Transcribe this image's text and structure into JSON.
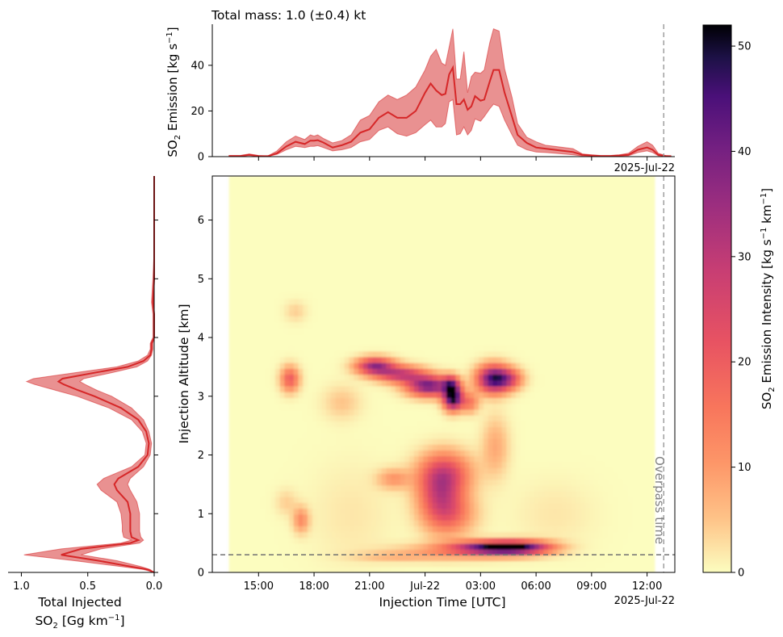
{
  "chart_data": [
    {
      "type": "area",
      "panel": "top",
      "title": "Total mass: 1.0 (±0.4) kt",
      "ylabel": "SO2 Emission [kg s-1]",
      "ylabel_parts": {
        "pre": "SO",
        "sub": "2",
        "mid": " Emission [kg s",
        "sup": "−1",
        "post": "]"
      },
      "ylim": [
        0,
        58
      ],
      "yticks": [
        0,
        20,
        40
      ],
      "xlim_hours": [
        -11.5,
        13.5
      ],
      "x_offset_label": "2025-Jul-22",
      "series": [
        {
          "color": "#d62728",
          "x_hours": [
            -10.6,
            -10,
            -9.5,
            -9,
            -8.5,
            -8,
            -7.5,
            -7,
            -6.5,
            -6.2,
            -6,
            -5.8,
            -5.5,
            -5,
            -4.5,
            -4,
            -3.5,
            -3,
            -2.5,
            -2,
            -1.5,
            -1,
            -0.5,
            0,
            0.3,
            0.6,
            0.9,
            1.1,
            1.3,
            1.5,
            1.7,
            1.9,
            2.1,
            2.3,
            2.5,
            2.7,
            3.0,
            3.2,
            3.5,
            3.7,
            4.0,
            4.3,
            4.7,
            5.0,
            5.5,
            6.0,
            6.5,
            7,
            8,
            8.5,
            9,
            9.5,
            10,
            10.5,
            11,
            11.5,
            12,
            12.3,
            12.6,
            13,
            13.3
          ],
          "y": [
            0.3,
            0.3,
            0.8,
            0.3,
            0.2,
            1.5,
            4.5,
            6.5,
            5.5,
            7.0,
            7.0,
            7.2,
            6.2,
            4.0,
            5.0,
            6.5,
            10.5,
            12.0,
            17.0,
            19.5,
            17.0,
            17.0,
            20.0,
            28.0,
            32.0,
            29.0,
            27.0,
            27.5,
            36.0,
            39.0,
            23.0,
            23.0,
            25.0,
            20.5,
            22.0,
            26.5,
            24.5,
            25.0,
            33.0,
            38.0,
            38.0,
            28.0,
            17.5,
            9.5,
            6.0,
            4.0,
            3.5,
            3.0,
            2.0,
            0.8,
            0.5,
            0.3,
            0.3,
            0.5,
            0.8,
            3.0,
            4.0,
            3.0,
            0.8,
            0.3,
            0.2
          ],
          "lower": [
            0.2,
            0.2,
            0.5,
            0.2,
            0.1,
            1.0,
            3.0,
            4.5,
            4.0,
            4.5,
            4.5,
            4.8,
            4.0,
            2.5,
            3.0,
            4.0,
            6.5,
            7.5,
            11.5,
            13.0,
            10.0,
            9.0,
            10.5,
            14.0,
            16.0,
            13.0,
            13.0,
            14.5,
            24.0,
            25.0,
            9.5,
            10.0,
            13.0,
            9.5,
            11.5,
            16.5,
            15.5,
            17.5,
            21.0,
            23.0,
            22.0,
            16.0,
            9.5,
            5.0,
            3.0,
            2.0,
            1.8,
            1.5,
            0.8,
            0.3,
            0.2,
            0.1,
            0.1,
            0.2,
            0.4,
            1.8,
            2.5,
            1.8,
            0.4,
            0.1,
            0.1
          ],
          "upper": [
            0.5,
            0.5,
            1.2,
            0.5,
            0.3,
            2.5,
            6.5,
            9.0,
            7.5,
            9.5,
            9.0,
            9.5,
            8.0,
            6.0,
            7.0,
            9.5,
            16.0,
            18.0,
            24.0,
            27.0,
            25.0,
            27.0,
            30.5,
            38.0,
            44.0,
            47.0,
            41.0,
            40.0,
            48.0,
            56.0,
            34.0,
            34.0,
            46.0,
            28.0,
            35.0,
            37.0,
            36.5,
            38.0,
            50.0,
            56.0,
            55.0,
            38.5,
            26.0,
            14.5,
            8.5,
            6.5,
            5.0,
            4.5,
            3.5,
            1.2,
            0.8,
            0.5,
            0.5,
            0.8,
            1.5,
            4.5,
            6.5,
            5.0,
            1.5,
            0.5,
            0.3
          ]
        }
      ]
    },
    {
      "type": "line",
      "panel": "left",
      "xlabel_parts": {
        "line1": "Total Injected",
        "pre": "SO",
        "sub": "2",
        "mid": " [Gg km",
        "sup": "−1",
        "post": "]"
      },
      "xlim": [
        1.1,
        0.0
      ],
      "xticks": [
        1.0,
        0.5,
        0.0
      ],
      "xtick_labels": [
        "1.0",
        "0.5",
        "0.0"
      ],
      "series": [
        {
          "color": "#d62728",
          "altitude_km": [
            0.0,
            0.05,
            0.1,
            0.2,
            0.3,
            0.4,
            0.5,
            0.55,
            0.6,
            0.7,
            0.8,
            1.0,
            1.2,
            1.4,
            1.5,
            1.6,
            1.8,
            2.0,
            2.2,
            2.4,
            2.6,
            2.8,
            3.0,
            3.1,
            3.2,
            3.25,
            3.3,
            3.4,
            3.5,
            3.6,
            3.7,
            3.8,
            3.9,
            4.0,
            4.2,
            4.4,
            4.6,
            5.0,
            5.5,
            6.0,
            6.5,
            6.75
          ],
          "value": [
            0.0,
            0.05,
            0.18,
            0.42,
            0.7,
            0.55,
            0.18,
            0.12,
            0.17,
            0.18,
            0.18,
            0.18,
            0.2,
            0.28,
            0.3,
            0.27,
            0.12,
            0.05,
            0.04,
            0.06,
            0.12,
            0.25,
            0.45,
            0.57,
            0.68,
            0.72,
            0.69,
            0.45,
            0.2,
            0.08,
            0.03,
            0.02,
            0.02,
            0.0,
            0.0,
            0.0,
            0.01,
            0.0,
            0.0,
            0.0,
            0.0,
            0.0
          ],
          "lower": [
            0.0,
            0.03,
            0.1,
            0.28,
            0.55,
            0.4,
            0.11,
            0.08,
            0.1,
            0.11,
            0.11,
            0.11,
            0.13,
            0.18,
            0.2,
            0.18,
            0.08,
            0.03,
            0.02,
            0.04,
            0.08,
            0.17,
            0.32,
            0.43,
            0.52,
            0.56,
            0.53,
            0.32,
            0.13,
            0.05,
            0.02,
            0.01,
            0.01,
            0.0,
            0.0,
            0.0,
            0.0,
            0.0,
            0.0,
            0.0,
            0.0,
            0.0
          ],
          "upper": [
            0.0,
            0.08,
            0.25,
            0.6,
            0.98,
            0.7,
            0.25,
            0.17,
            0.23,
            0.24,
            0.24,
            0.25,
            0.28,
            0.4,
            0.43,
            0.38,
            0.17,
            0.07,
            0.06,
            0.09,
            0.17,
            0.34,
            0.58,
            0.74,
            0.9,
            0.96,
            0.91,
            0.6,
            0.28,
            0.12,
            0.05,
            0.03,
            0.03,
            0.01,
            0.01,
            0.01,
            0.02,
            0.01,
            0.0,
            0.0,
            0.0,
            0.0
          ]
        }
      ]
    },
    {
      "type": "heatmap",
      "panel": "main",
      "xlabel": "Injection Time [UTC]",
      "ylabel": "Injection Altitude [km]",
      "xlim_hours": [
        -11.5,
        13.5
      ],
      "ylim": [
        0,
        6.75
      ],
      "xticks_hours": [
        -9,
        -6,
        -3,
        0,
        3,
        6,
        9,
        12
      ],
      "xtick_labels": [
        "15:00",
        "18:00",
        "21:00",
        "Jul-22",
        "03:00",
        "06:00",
        "09:00",
        "12:00"
      ],
      "x_offset_label": "2025-Jul-22",
      "yticks": [
        0,
        1,
        2,
        3,
        4,
        5,
        6
      ],
      "data_extent_hours": [
        -10.6,
        12.4
      ],
      "overpass_hours": 12.9,
      "overpass_label": "Overpass time",
      "hline_altitude_km": 0.3,
      "blobs": [
        {
          "t": 3.6,
          "z": 0.43,
          "dt": 1.4,
          "dz": 0.08,
          "v": 38
        },
        {
          "t": 5.2,
          "z": 0.43,
          "dt": 1.2,
          "dz": 0.08,
          "v": 33
        },
        {
          "t": 1.6,
          "z": 0.36,
          "dt": 2.2,
          "dz": 0.1,
          "v": 10
        },
        {
          "t": -1.8,
          "z": 0.27,
          "dt": 1.5,
          "dz": 0.06,
          "v": 5
        },
        {
          "t": -2.7,
          "z": 3.52,
          "dt": 0.7,
          "dz": 0.1,
          "v": 35
        },
        {
          "t": -1.3,
          "z": 3.38,
          "dt": 0.9,
          "dz": 0.1,
          "v": 28
        },
        {
          "t": 0.2,
          "z": 3.18,
          "dt": 0.8,
          "dz": 0.12,
          "v": 40
        },
        {
          "t": 1.5,
          "z": 2.98,
          "dt": 0.35,
          "dz": 0.14,
          "v": 52
        },
        {
          "t": 1.4,
          "z": 3.22,
          "dt": 0.3,
          "dz": 0.1,
          "v": 25
        },
        {
          "t": 2.4,
          "z": 2.9,
          "dt": 0.35,
          "dz": 0.12,
          "v": 15
        },
        {
          "t": 3.7,
          "z": 3.3,
          "dt": 0.6,
          "dz": 0.16,
          "v": 46
        },
        {
          "t": 4.6,
          "z": 3.3,
          "dt": 0.5,
          "dz": 0.12,
          "v": 18
        },
        {
          "t": -7.3,
          "z": 3.3,
          "dt": 0.35,
          "dz": 0.15,
          "v": 20
        },
        {
          "t": -4.5,
          "z": 2.9,
          "dt": 0.7,
          "dz": 0.2,
          "v": 5
        },
        {
          "t": 3.8,
          "z": 2.15,
          "dt": 0.5,
          "dz": 0.35,
          "v": 8
        },
        {
          "t": 1.1,
          "z": 1.7,
          "dt": 1.0,
          "dz": 0.25,
          "v": 20
        },
        {
          "t": 0.8,
          "z": 1.3,
          "dt": 0.8,
          "dz": 0.35,
          "v": 22
        },
        {
          "t": 1.5,
          "z": 1.0,
          "dt": 0.9,
          "dz": 0.25,
          "v": 12
        },
        {
          "t": -1.7,
          "z": 1.6,
          "dt": 0.6,
          "dz": 0.12,
          "v": 10
        },
        {
          "t": -6.7,
          "z": 0.9,
          "dt": 0.3,
          "dz": 0.15,
          "v": 12
        },
        {
          "t": -7.5,
          "z": 1.2,
          "dt": 0.4,
          "dz": 0.15,
          "v": 4
        },
        {
          "t": -7.0,
          "z": 4.45,
          "dt": 0.4,
          "dz": 0.12,
          "v": 4
        },
        {
          "t": -4.0,
          "z": 1.0,
          "dt": 1.5,
          "dz": 0.6,
          "v": 2
        },
        {
          "t": 7.0,
          "z": 1.0,
          "dt": 1.5,
          "dz": 0.4,
          "v": 2
        }
      ]
    },
    {
      "type": "colorbar",
      "panel": "colorbar",
      "label_parts": {
        "pre": "SO",
        "sub": "2",
        "mid": " Emission Intensity [kg s",
        "sup1": "−1",
        "mid2": " km",
        "sup2": "−1",
        "post": "]"
      },
      "range": [
        0,
        52
      ],
      "ticks": [
        0,
        10,
        20,
        30,
        40,
        50
      ],
      "colormap": "magma_r"
    }
  ]
}
